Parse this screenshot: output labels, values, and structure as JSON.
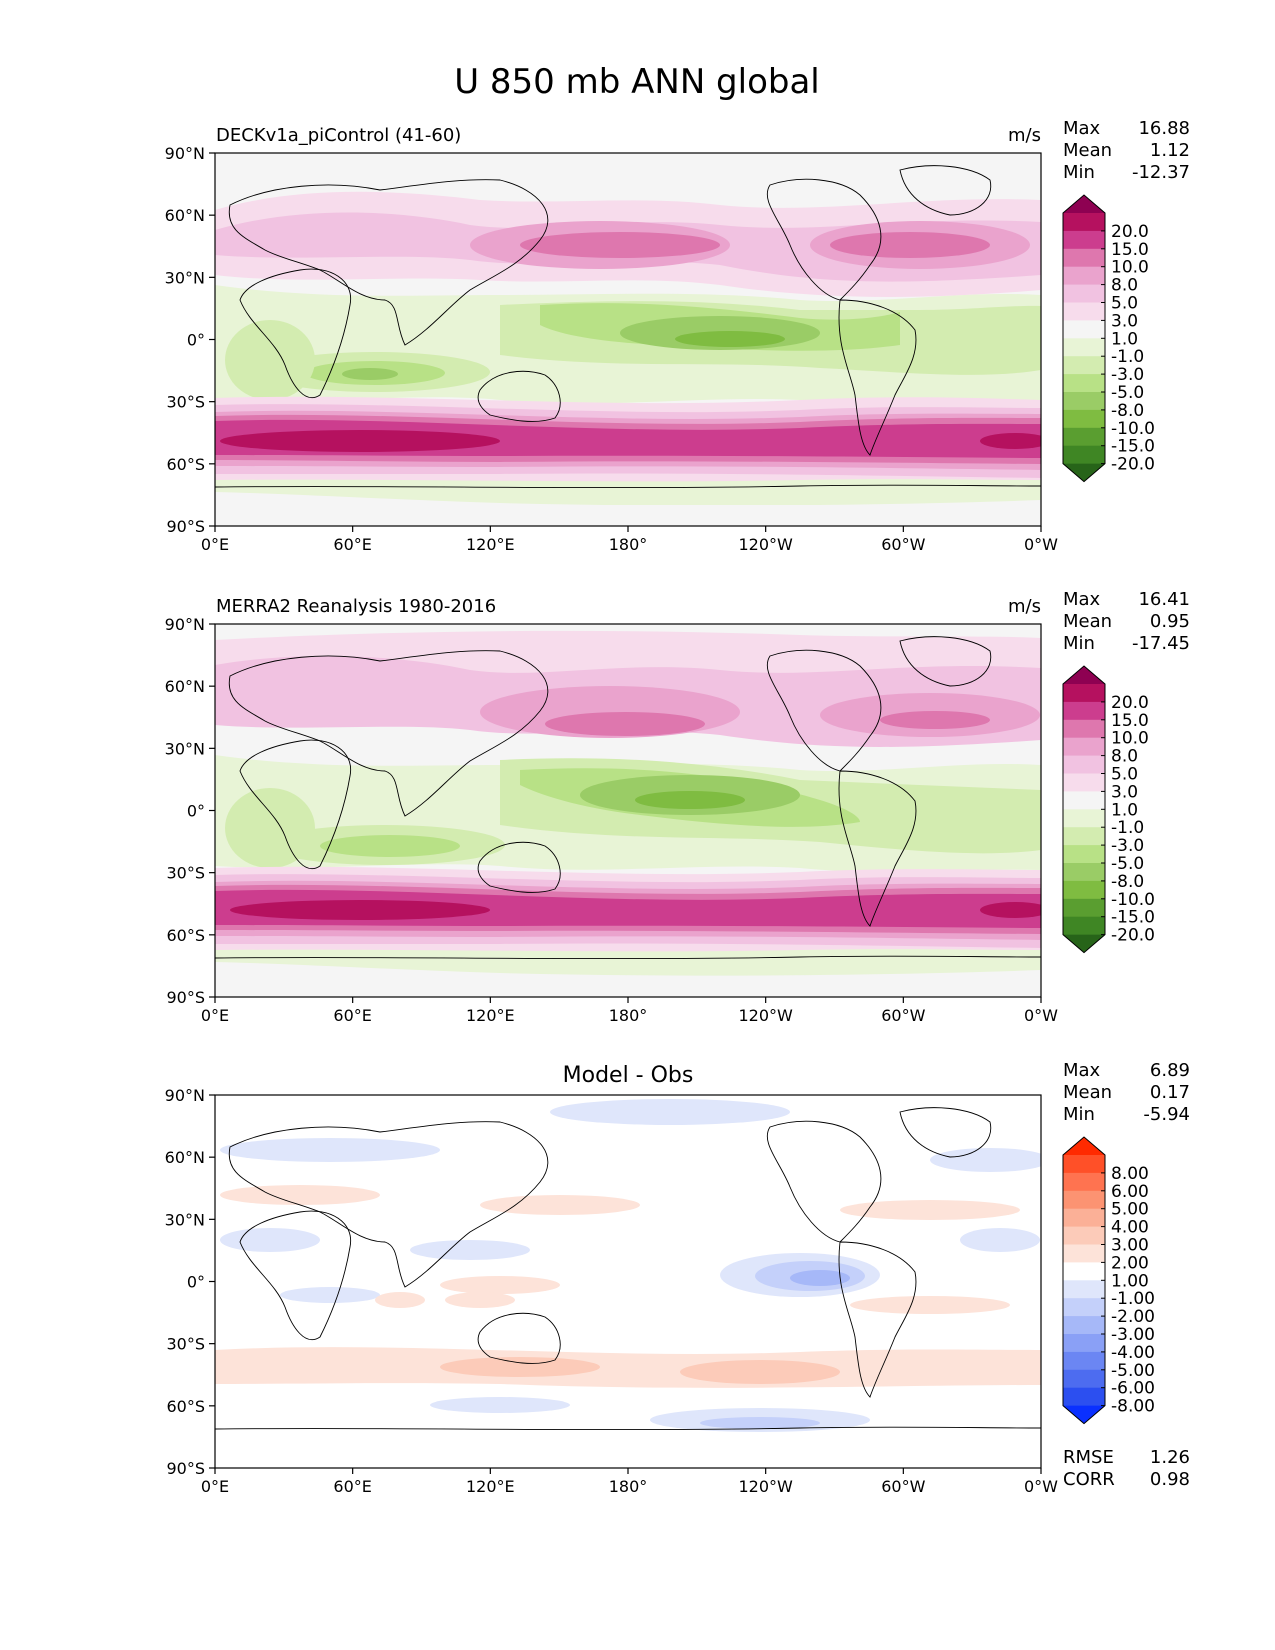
{
  "title": "U 850 mb ANN global",
  "x_ticks": [
    "0°E",
    "60°E",
    "120°E",
    "180°",
    "120°W",
    "60°W",
    "0°W"
  ],
  "y_ticks": [
    "90°N",
    "60°N",
    "30°N",
    "0°",
    "30°S",
    "60°S",
    "90°S"
  ],
  "stat_labels": {
    "max": "Max",
    "mean": "Mean",
    "min": "Min",
    "rmse": "RMSE",
    "corr": "CORR"
  },
  "panels": [
    {
      "title": "DECKv1a_piControl (41-60)",
      "units": "m/s",
      "stats": {
        "max": "16.88",
        "mean": "1.12",
        "min": "-12.37"
      },
      "colorbar": {
        "levels": [
          "20.0",
          "15.0",
          "10.0",
          "8.0",
          "5.0",
          "3.0",
          "1.0",
          "-1.0",
          "-3.0",
          "-5.0",
          "-8.0",
          "-10.0",
          "-15.0",
          "-20.0"
        ],
        "colors": [
          "#8e0152",
          "#b5115f",
          "#cc3d8e",
          "#de77ae",
          "#eaa3cd",
          "#f1c2e1",
          "#f7dcec",
          "#f5f5f5",
          "#e8f4d6",
          "#d3ecb0",
          "#b8e186",
          "#9acc66",
          "#7fbc41",
          "#5a9e30",
          "#3f8624",
          "#276419"
        ]
      }
    },
    {
      "title": "MERRA2 Reanalysis 1980-2016",
      "units": "m/s",
      "stats": {
        "max": "16.41",
        "mean": "0.95",
        "min": "-17.45"
      },
      "colorbar": {
        "levels": [
          "20.0",
          "15.0",
          "10.0",
          "8.0",
          "5.0",
          "3.0",
          "1.0",
          "-1.0",
          "-3.0",
          "-5.0",
          "-8.0",
          "-10.0",
          "-15.0",
          "-20.0"
        ],
        "colors": [
          "#8e0152",
          "#b5115f",
          "#cc3d8e",
          "#de77ae",
          "#eaa3cd",
          "#f1c2e1",
          "#f7dcec",
          "#f5f5f5",
          "#e8f4d6",
          "#d3ecb0",
          "#b8e186",
          "#9acc66",
          "#7fbc41",
          "#5a9e30",
          "#3f8624",
          "#276419"
        ]
      }
    },
    {
      "title": "Model - Obs",
      "units": "",
      "stats": {
        "max": "6.89",
        "mean": "0.17",
        "min": "-5.94",
        "rmse": "1.26",
        "corr": "0.98"
      },
      "colorbar": {
        "levels": [
          "8.00",
          "6.00",
          "5.00",
          "4.00",
          "3.00",
          "2.00",
          "1.00",
          "-1.00",
          "-2.00",
          "-3.00",
          "-4.00",
          "-5.00",
          "-6.00",
          "-8.00"
        ],
        "colors": [
          "#ff2a00",
          "#ff5028",
          "#ff7350",
          "#fc9372",
          "#fbb097",
          "#fccbb9",
          "#fde3d9",
          "#ffffff",
          "#dfe6fb",
          "#c4d0fa",
          "#a6b8f8",
          "#8aa0f6",
          "#6b86f3",
          "#4d6cf0",
          "#2c4ff0",
          "#0a30ff"
        ]
      }
    }
  ]
}
